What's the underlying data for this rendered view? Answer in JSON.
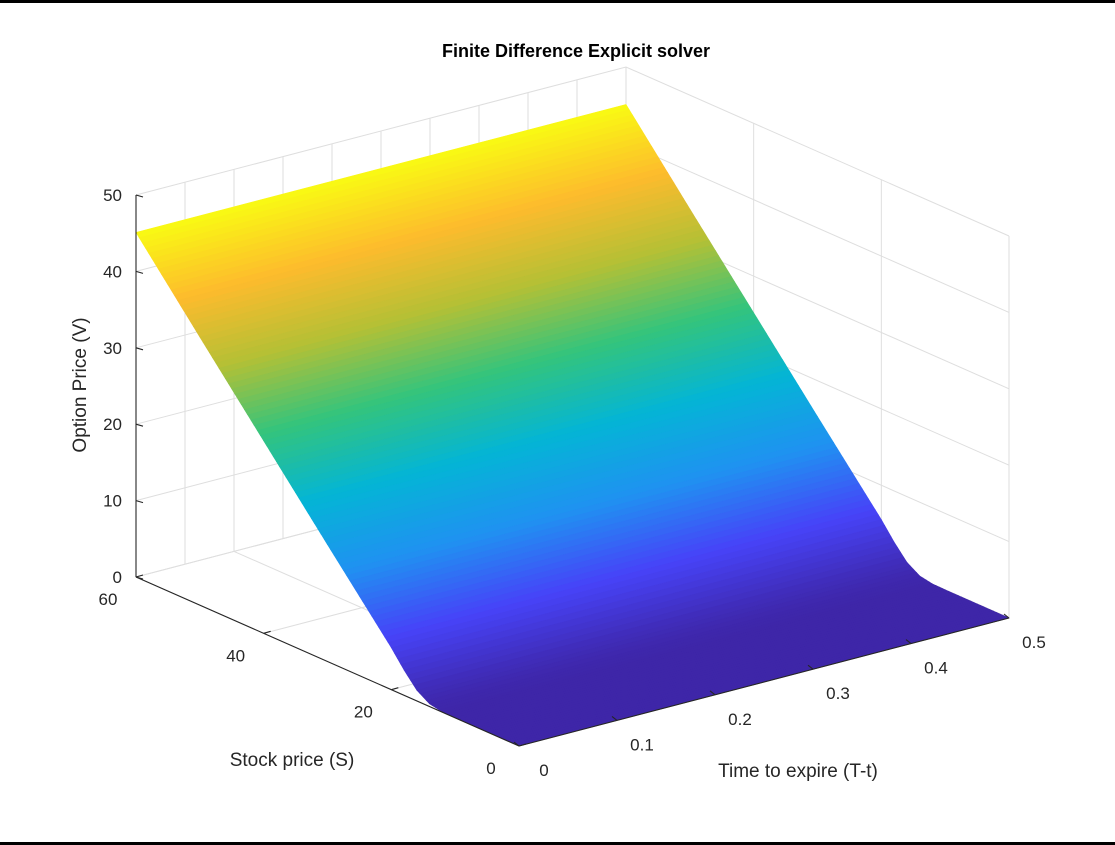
{
  "chart_data": {
    "type": "surface",
    "title": "Finite Difference Explicit solver",
    "xlabel": "Time to expire (T-t)",
    "ylabel": "Stock price (S)",
    "zlabel": "Option Price (V)",
    "xlim": [
      0,
      0.5
    ],
    "ylim": [
      0,
      60
    ],
    "zlim": [
      0,
      50
    ],
    "x_ticks": [
      0,
      0.1,
      0.2,
      0.3,
      0.4,
      0.5
    ],
    "x_tick_labels": [
      "0",
      "0.1",
      "0.2",
      "0.3",
      "0.4",
      "0.5"
    ],
    "y_ticks": [
      0,
      20,
      40,
      60
    ],
    "y_tick_labels": [
      "0",
      "20",
      "40",
      "60"
    ],
    "z_ticks": [
      0,
      10,
      20,
      30,
      40,
      50
    ],
    "z_tick_labels": [
      "0",
      "10",
      "20",
      "30",
      "40",
      "50"
    ],
    "grid": true,
    "colormap": "parula",
    "colormap_stops": [
      "#3e26a8",
      "#4743f8",
      "#1f92f1",
      "#04b5d5",
      "#33c47d",
      "#b4c035",
      "#fdbb2d",
      "#f9fa13"
    ],
    "strike": 15,
    "surface_profile": {
      "stock_price": [
        0,
        10,
        12,
        14,
        16,
        18,
        20,
        25,
        30,
        40,
        50,
        60
      ],
      "option_value": [
        0,
        0,
        0.04,
        0.35,
        1.4,
        3.3,
        5.5,
        10.4,
        15.3,
        25.2,
        35.1,
        45.1
      ]
    }
  }
}
